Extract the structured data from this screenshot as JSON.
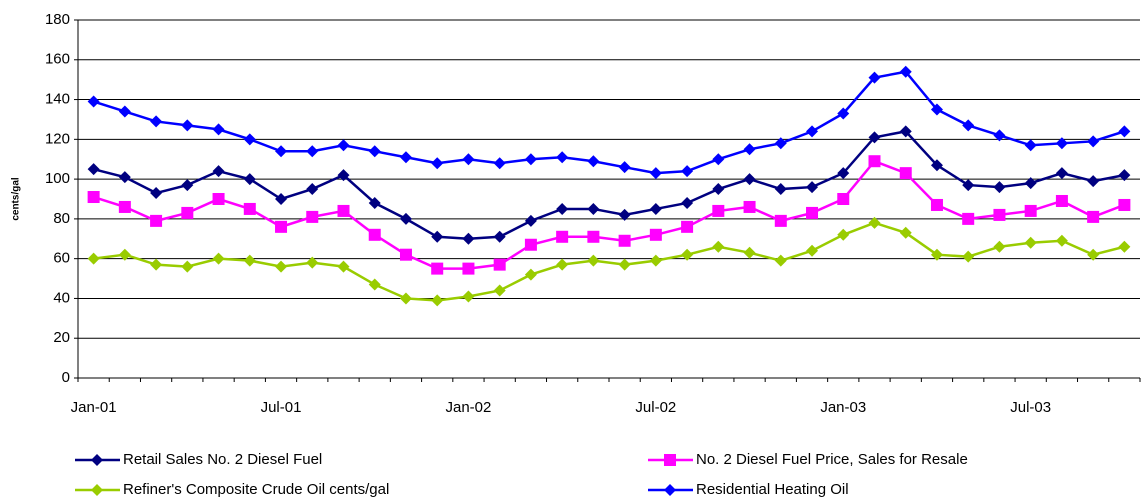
{
  "chart_data": {
    "type": "line",
    "y_label": "cents/gal",
    "categories": [
      "Jan-01",
      null,
      null,
      null,
      null,
      null,
      "Jul-01",
      null,
      null,
      null,
      null,
      null,
      "Jan-02",
      null,
      null,
      null,
      null,
      null,
      "Jul-02",
      null,
      null,
      null,
      null,
      null,
      "Jan-03",
      null,
      null,
      null,
      null,
      null,
      "Jul-03",
      null,
      null,
      null
    ],
    "ylim": [
      0,
      180
    ],
    "yticks": [
      0,
      20,
      40,
      60,
      80,
      100,
      120,
      140,
      160,
      180
    ],
    "grid": true,
    "legend": "bottom",
    "series": [
      {
        "name": "Retail Sales No. 2 Diesel Fuel",
        "color": "#000080",
        "marker": "diamond",
        "values": [
          105,
          101,
          93,
          97,
          104,
          100,
          90,
          95,
          102,
          88,
          80,
          71,
          70,
          71,
          79,
          85,
          85,
          82,
          85,
          88,
          95,
          100,
          95,
          96,
          103,
          121,
          124,
          107,
          97,
          96,
          98,
          103,
          99,
          102
        ]
      },
      {
        "name": "No. 2 Diesel Fuel Price, Sales for Resale",
        "color": "#ff00ff",
        "marker": "square",
        "values": [
          91,
          86,
          79,
          83,
          90,
          85,
          76,
          81,
          84,
          72,
          62,
          55,
          55,
          57,
          67,
          71,
          71,
          69,
          72,
          76,
          84,
          86,
          79,
          83,
          90,
          109,
          103,
          87,
          80,
          82,
          84,
          89,
          81,
          87
        ]
      },
      {
        "name": "Refiner's Composite Crude Oil cents/gal",
        "color": "#99cc00",
        "marker": "diamond",
        "values": [
          60,
          62,
          57,
          56,
          60,
          59,
          56,
          58,
          56,
          47,
          40,
          39,
          41,
          44,
          52,
          57,
          59,
          57,
          59,
          62,
          66,
          63,
          59,
          64,
          72,
          78,
          73,
          62,
          61,
          66,
          68,
          69,
          62,
          66
        ]
      },
      {
        "name": "Residential Heating Oil",
        "color": "#0000ff",
        "marker": "diamond",
        "values": [
          139,
          134,
          129,
          127,
          125,
          120,
          114,
          114,
          117,
          114,
          111,
          108,
          110,
          108,
          110,
          111,
          109,
          106,
          103,
          104,
          110,
          115,
          118,
          124,
          133,
          151,
          154,
          135,
          127,
          122,
          117,
          118,
          119,
          124
        ]
      }
    ]
  }
}
